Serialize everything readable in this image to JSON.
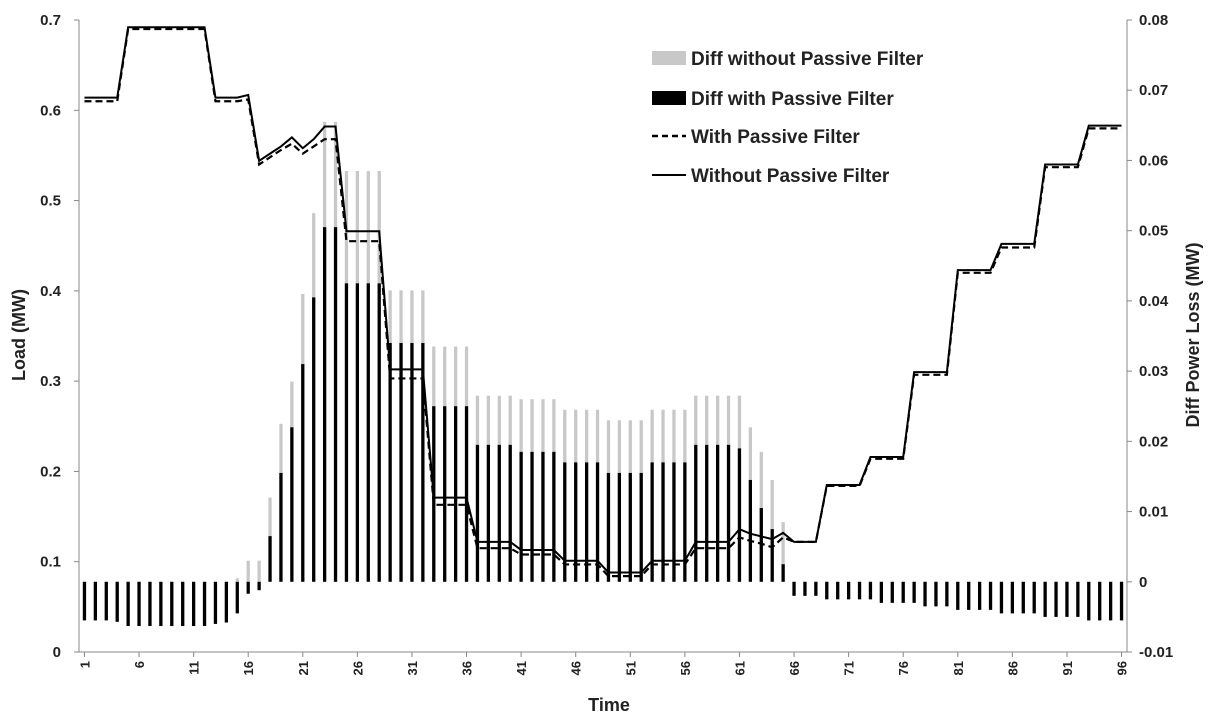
{
  "chart_data": {
    "type": "bar+line",
    "xlabel": "Time",
    "ylabel": "Load (MW)",
    "y2label": "Diff Power Loss (MW)",
    "ylim": [
      0,
      0.7
    ],
    "y2lim": [
      -0.01,
      0.08
    ],
    "yticks": [
      "0",
      "0.1",
      "0.2",
      "0.3",
      "0.4",
      "0.5",
      "0.6",
      "0.7"
    ],
    "y2ticks": [
      "-0.01",
      "0",
      "0.01",
      "0.02",
      "0.03",
      "0.04",
      "0.05",
      "0.06",
      "0.07",
      "0.08"
    ],
    "xticks": [
      "1",
      "6",
      "11",
      "16",
      "21",
      "26",
      "31",
      "36",
      "41",
      "46",
      "51",
      "56",
      "61",
      "66",
      "71",
      "76",
      "81",
      "86",
      "91",
      "96"
    ],
    "legend_position": "top-right",
    "x": [
      1,
      2,
      3,
      4,
      5,
      6,
      7,
      8,
      9,
      10,
      11,
      12,
      13,
      14,
      15,
      16,
      17,
      18,
      19,
      20,
      21,
      22,
      23,
      24,
      25,
      26,
      27,
      28,
      29,
      30,
      31,
      32,
      33,
      34,
      35,
      36,
      37,
      38,
      39,
      40,
      41,
      42,
      43,
      44,
      45,
      46,
      47,
      48,
      49,
      50,
      51,
      52,
      53,
      54,
      55,
      56,
      57,
      58,
      59,
      60,
      61,
      62,
      63,
      64,
      65,
      66,
      67,
      68,
      69,
      70,
      71,
      72,
      73,
      74,
      75,
      76,
      77,
      78,
      79,
      80,
      81,
      82,
      83,
      84,
      85,
      86,
      87,
      88,
      89,
      90,
      91,
      92,
      93,
      94,
      95,
      96
    ],
    "series": [
      {
        "name": "Diff without Passive Filter",
        "kind": "bar",
        "axis": "right",
        "color": "#c8c8c8",
        "values": [
          -0.0055,
          -0.0055,
          -0.0055,
          -0.0057,
          -0.0063,
          -0.0063,
          -0.0063,
          -0.0063,
          -0.0063,
          -0.0063,
          -0.0063,
          -0.0063,
          -0.006,
          -0.0058,
          0.0005,
          0.003,
          0.003,
          0.012,
          0.0225,
          0.0285,
          0.041,
          0.0525,
          0.0655,
          0.0655,
          0.0585,
          0.0585,
          0.0585,
          0.0585,
          0.0415,
          0.0415,
          0.0415,
          0.0415,
          0.0335,
          0.0335,
          0.0335,
          0.0335,
          0.0265,
          0.0265,
          0.0265,
          0.0265,
          0.026,
          0.026,
          0.026,
          0.026,
          0.0245,
          0.0245,
          0.0245,
          0.0245,
          0.023,
          0.023,
          0.023,
          0.023,
          0.0245,
          0.0245,
          0.0245,
          0.0245,
          0.0265,
          0.0265,
          0.0265,
          0.0265,
          0.0265,
          0.022,
          0.0185,
          0.0145,
          0.0085,
          -0.002,
          -0.002,
          -0.002,
          -0.0025,
          -0.0025,
          -0.0025,
          -0.0025,
          -0.0025,
          -0.003,
          -0.003,
          -0.003,
          -0.003,
          -0.0035,
          -0.0035,
          -0.0035,
          -0.004,
          -0.004,
          -0.004,
          -0.004,
          -0.0045,
          -0.0045,
          -0.0045,
          -0.0045,
          -0.005,
          -0.005,
          -0.005,
          -0.005,
          -0.0055,
          -0.0055,
          -0.0055,
          -0.0055
        ]
      },
      {
        "name": "Diff with Passive Filter",
        "kind": "bar",
        "axis": "right",
        "color": "#000000",
        "values": [
          -0.0055,
          -0.0055,
          -0.0055,
          -0.0057,
          -0.0063,
          -0.0063,
          -0.0063,
          -0.0063,
          -0.0063,
          -0.0063,
          -0.0063,
          -0.0063,
          -0.006,
          -0.0058,
          -0.0045,
          -0.0017,
          -0.0012,
          0.0065,
          0.0155,
          0.022,
          0.031,
          0.0405,
          0.0505,
          0.0505,
          0.0425,
          0.0425,
          0.0425,
          0.0425,
          0.034,
          0.034,
          0.034,
          0.034,
          0.025,
          0.025,
          0.025,
          0.025,
          0.0195,
          0.0195,
          0.0195,
          0.0195,
          0.0185,
          0.0185,
          0.0185,
          0.0185,
          0.017,
          0.017,
          0.017,
          0.017,
          0.0155,
          0.0155,
          0.0155,
          0.0155,
          0.017,
          0.017,
          0.017,
          0.017,
          0.0195,
          0.0195,
          0.0195,
          0.0195,
          0.019,
          0.0145,
          0.0105,
          0.0075,
          0.0025,
          -0.002,
          -0.002,
          -0.002,
          -0.0025,
          -0.0025,
          -0.0025,
          -0.0025,
          -0.0025,
          -0.003,
          -0.003,
          -0.003,
          -0.003,
          -0.0035,
          -0.0035,
          -0.0035,
          -0.004,
          -0.004,
          -0.004,
          -0.004,
          -0.0045,
          -0.0045,
          -0.0045,
          -0.0045,
          -0.005,
          -0.005,
          -0.005,
          -0.005,
          -0.0055,
          -0.0055,
          -0.0055,
          -0.0055
        ]
      },
      {
        "name": "With Passive Filter",
        "kind": "line",
        "axis": "left",
        "color": "#000000",
        "dash": true,
        "values": [
          0.61,
          0.61,
          0.61,
          0.61,
          0.69,
          0.69,
          0.69,
          0.69,
          0.69,
          0.69,
          0.69,
          0.69,
          0.61,
          0.61,
          0.61,
          0.612,
          0.54,
          0.548,
          0.556,
          0.563,
          0.552,
          0.56,
          0.568,
          0.568,
          0.455,
          0.455,
          0.455,
          0.455,
          0.303,
          0.303,
          0.303,
          0.303,
          0.163,
          0.163,
          0.163,
          0.163,
          0.115,
          0.115,
          0.115,
          0.115,
          0.108,
          0.108,
          0.108,
          0.108,
          0.097,
          0.097,
          0.097,
          0.097,
          0.084,
          0.084,
          0.084,
          0.084,
          0.097,
          0.097,
          0.097,
          0.097,
          0.115,
          0.115,
          0.115,
          0.115,
          0.127,
          0.123,
          0.12,
          0.116,
          0.127,
          0.122,
          0.122,
          0.122,
          0.184,
          0.184,
          0.184,
          0.184,
          0.214,
          0.214,
          0.214,
          0.214,
          0.307,
          0.307,
          0.307,
          0.307,
          0.42,
          0.42,
          0.42,
          0.42,
          0.448,
          0.448,
          0.448,
          0.448,
          0.537,
          0.537,
          0.537,
          0.537,
          0.58,
          0.58,
          0.58,
          0.58
        ]
      },
      {
        "name": "Without Passive Filter",
        "kind": "line",
        "axis": "left",
        "color": "#000000",
        "dash": false,
        "values": [
          0.614,
          0.614,
          0.614,
          0.614,
          0.692,
          0.692,
          0.692,
          0.692,
          0.692,
          0.692,
          0.692,
          0.692,
          0.614,
          0.614,
          0.614,
          0.617,
          0.544,
          0.552,
          0.56,
          0.57,
          0.558,
          0.568,
          0.582,
          0.582,
          0.466,
          0.466,
          0.466,
          0.466,
          0.313,
          0.313,
          0.313,
          0.313,
          0.171,
          0.171,
          0.171,
          0.171,
          0.122,
          0.122,
          0.122,
          0.122,
          0.113,
          0.113,
          0.113,
          0.113,
          0.101,
          0.101,
          0.101,
          0.101,
          0.088,
          0.088,
          0.088,
          0.088,
          0.101,
          0.101,
          0.101,
          0.101,
          0.122,
          0.122,
          0.122,
          0.122,
          0.136,
          0.131,
          0.128,
          0.125,
          0.132,
          0.122,
          0.122,
          0.122,
          0.185,
          0.185,
          0.185,
          0.185,
          0.216,
          0.216,
          0.216,
          0.216,
          0.31,
          0.31,
          0.31,
          0.31,
          0.423,
          0.423,
          0.423,
          0.423,
          0.452,
          0.452,
          0.452,
          0.452,
          0.54,
          0.54,
          0.54,
          0.54,
          0.583,
          0.583,
          0.583,
          0.583
        ]
      }
    ]
  }
}
